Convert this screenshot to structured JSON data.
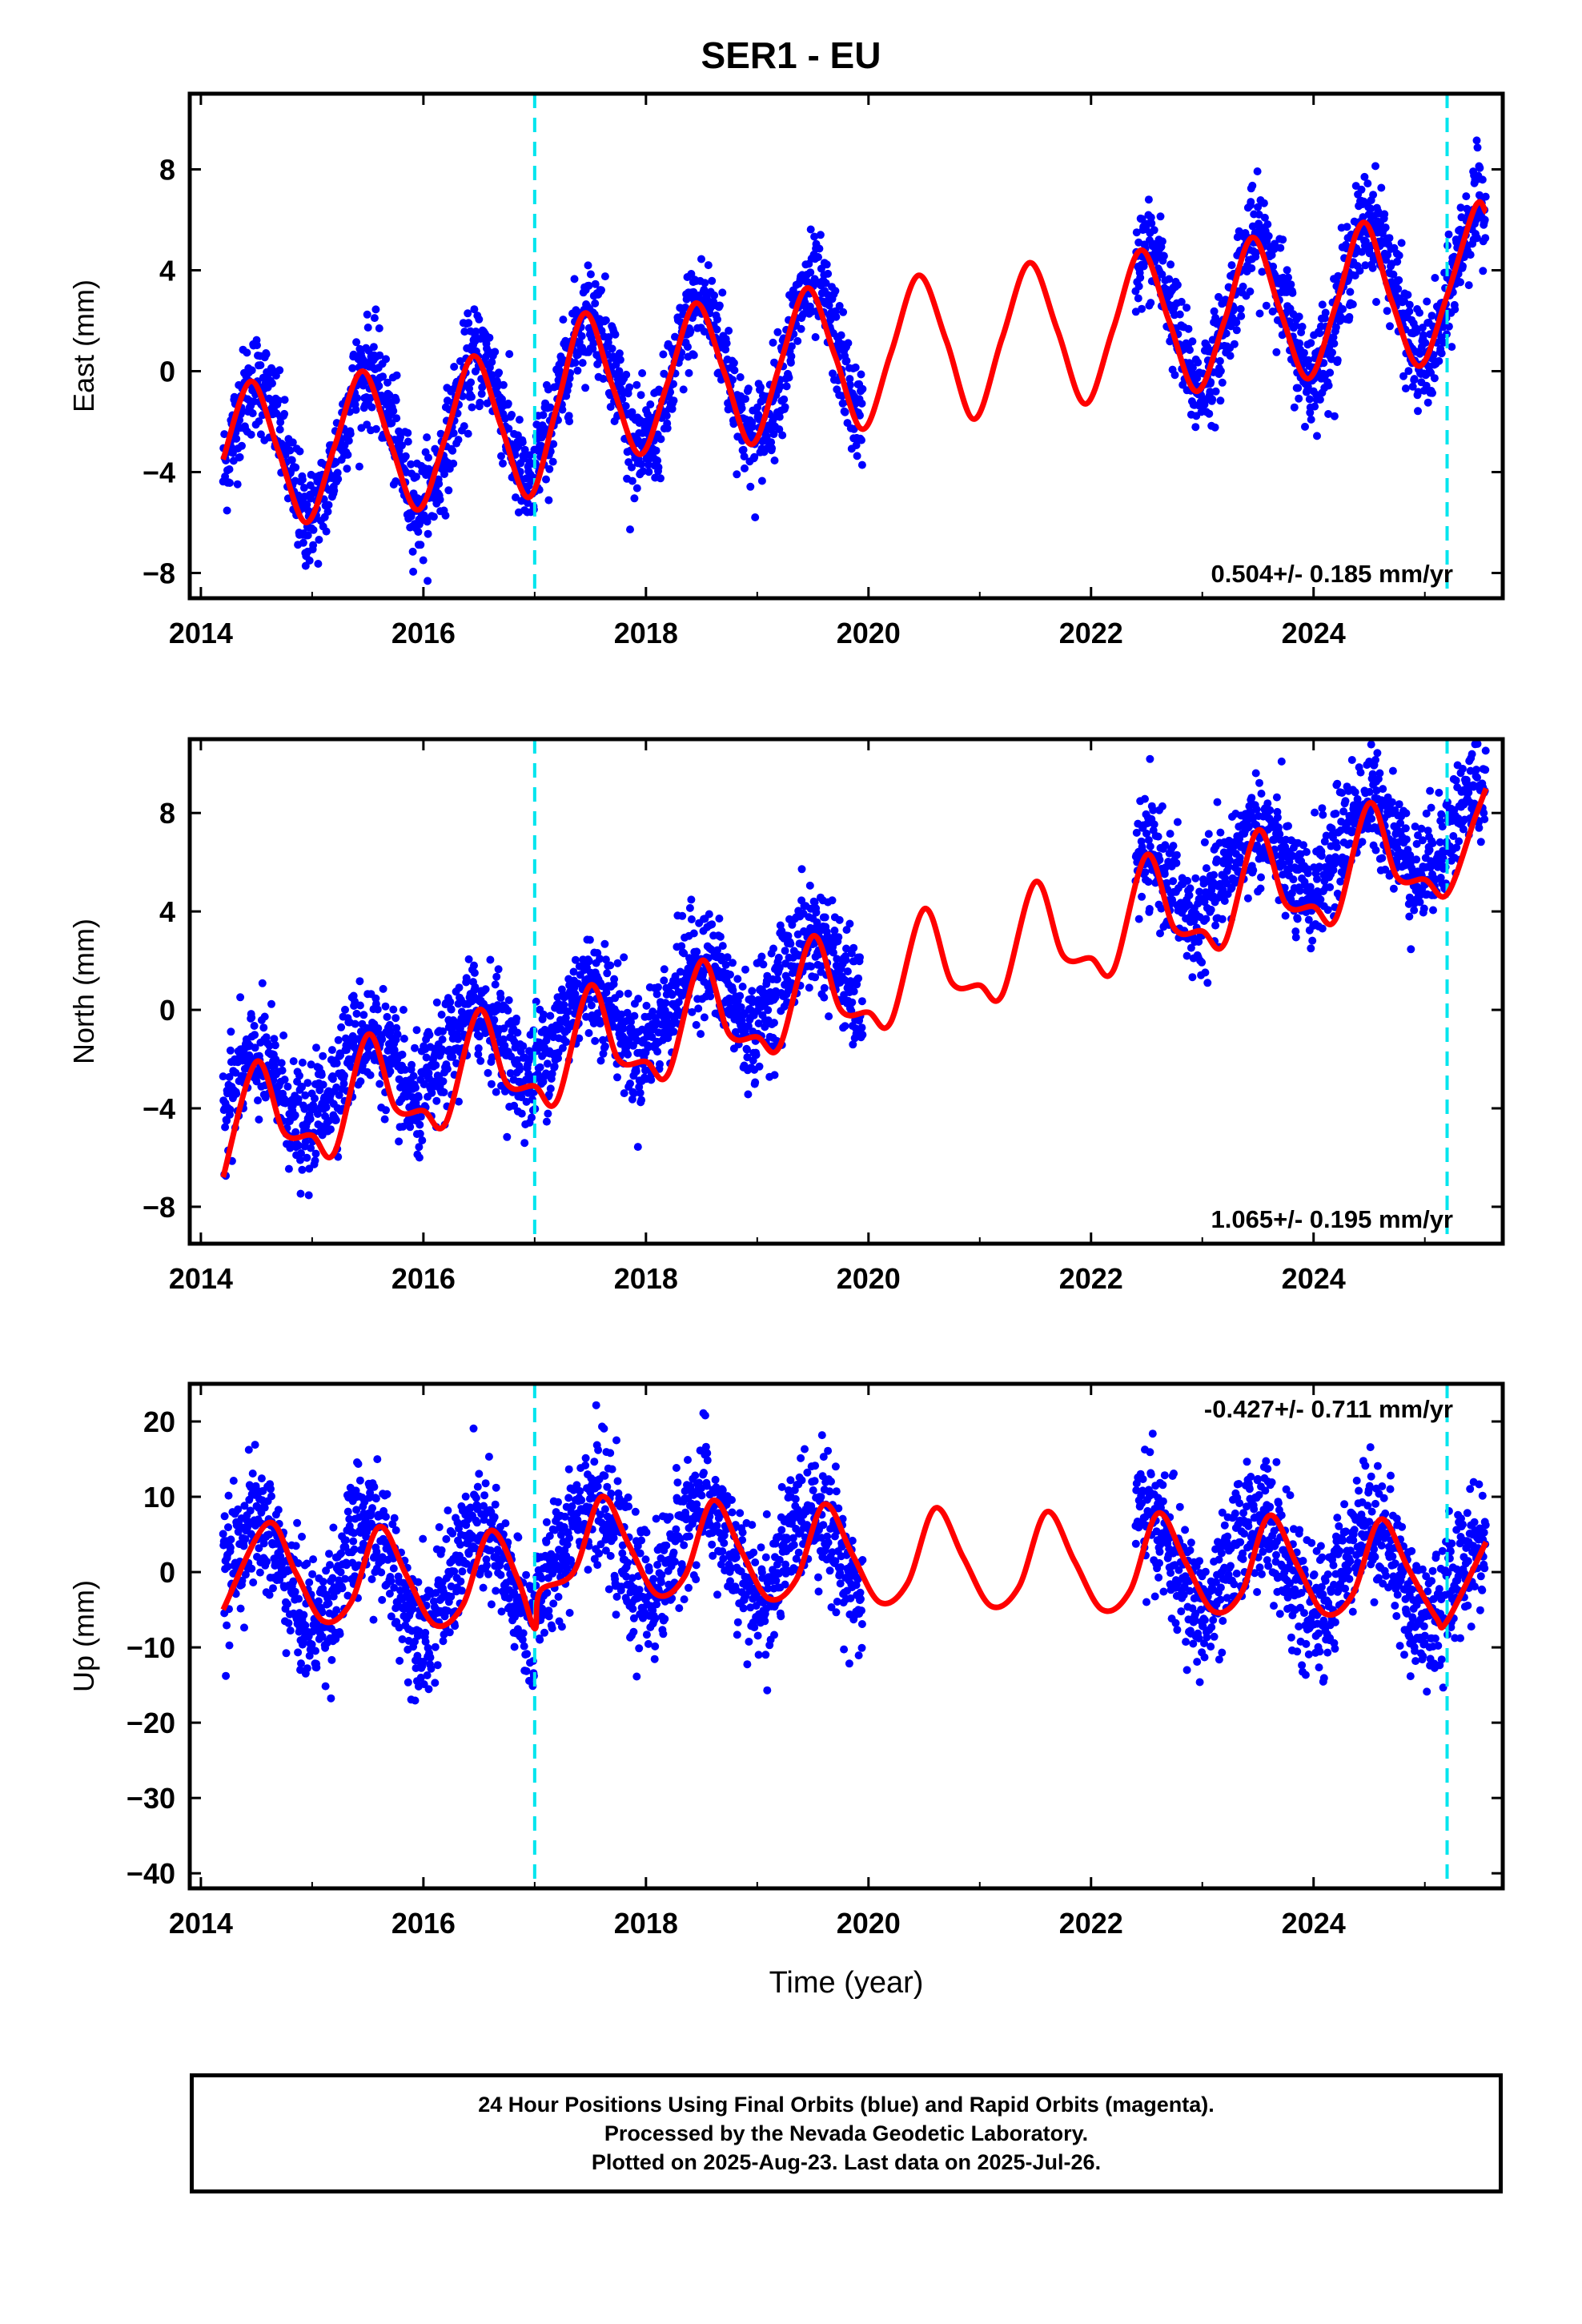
{
  "title": "SER1 - EU",
  "chart_data": [
    {
      "type": "scatter",
      "panel": "east",
      "ylabel": "East (mm)",
      "xlabel": "",
      "xlim": [
        2013.9,
        2025.7
      ],
      "ylim": [
        -9,
        11
      ],
      "xticks": [
        2014,
        2016,
        2018,
        2020,
        2022,
        2024
      ],
      "yticks": [
        -8,
        -4,
        0,
        4,
        8
      ],
      "grid": false,
      "rate_label": "0.504+/- 0.185 mm/yr",
      "rate_position": "bottom-right",
      "offset_lines": [
        2017.0,
        2025.2
      ],
      "point_color": "#0000ff",
      "fit_color": "#ff0000",
      "offset_color": "#00e5ee",
      "point_data": {
        "segments": [
          [
            2014.2,
            2019.95
          ],
          [
            2022.4,
            2025.55
          ]
        ],
        "trend": [
          -3.0,
          0.504
        ],
        "seasonal": [
          {
            "year": 2014,
            "peak": -0.4,
            "trough": -6.0
          },
          {
            "year": 2015,
            "peak": 0.0,
            "trough": -5.5
          },
          {
            "year": 2016,
            "peak": 0.6,
            "trough": -5.0
          },
          {
            "year": 2017,
            "peak": 2.3,
            "trough": -3.3
          },
          {
            "year": 2018,
            "peak": 2.7,
            "trough": -2.9
          },
          {
            "year": 2019,
            "peak": 3.3,
            "trough": -2.3
          },
          {
            "year": 2020,
            "peak": 3.8,
            "trough": -1.9
          },
          {
            "year": 2021,
            "peak": 4.3,
            "trough": -1.3
          },
          {
            "year": 2022,
            "peak": 4.8,
            "trough": -0.8
          },
          {
            "year": 2023,
            "peak": 5.3,
            "trough": -0.3
          },
          {
            "year": 2024,
            "peak": 5.9,
            "trough": 0.2
          },
          {
            "year": 2025,
            "peak": 6.5,
            "trough": 0.5
          }
        ],
        "scatter_sd": 1.0
      },
      "fit_curve": {
        "x": [
          2014.2,
          2014.45,
          2014.7,
          2014.95,
          2015.2,
          2015.45,
          2015.7,
          2015.95,
          2016.2,
          2016.45,
          2016.7,
          2016.95,
          2017.2,
          2017.45,
          2017.7,
          2017.95,
          2018.2,
          2018.45,
          2018.7,
          2018.95,
          2019.2,
          2019.45,
          2019.7,
          2019.95,
          2020.2,
          2020.45,
          2020.7,
          2020.95,
          2021.2,
          2021.45,
          2021.7,
          2021.95,
          2022.2,
          2022.45,
          2022.7,
          2022.95,
          2023.2,
          2023.45,
          2023.7,
          2023.95,
          2024.2,
          2024.45,
          2024.7,
          2024.95,
          2025.2,
          2025.45,
          2025.55
        ],
        "y": [
          -3.5,
          -0.4,
          -3.2,
          -6.0,
          -3.0,
          0.0,
          -2.8,
          -5.5,
          -2.6,
          0.6,
          -2.2,
          -5.0,
          -1.4,
          2.3,
          -0.6,
          -3.3,
          -0.4,
          2.7,
          0.0,
          -2.9,
          0.2,
          3.3,
          0.6,
          -2.3,
          0.7,
          3.8,
          1.2,
          -1.9,
          1.3,
          4.3,
          1.6,
          -1.3,
          1.7,
          4.8,
          2.0,
          -0.8,
          2.0,
          5.3,
          2.4,
          -0.3,
          2.6,
          5.9,
          2.8,
          0.2,
          3.0,
          6.5,
          6.3
        ]
      }
    },
    {
      "type": "scatter",
      "panel": "north",
      "ylabel": "North (mm)",
      "xlabel": "",
      "xlim": [
        2013.9,
        2025.7
      ],
      "ylim": [
        -9.5,
        11
      ],
      "xticks": [
        2014,
        2016,
        2018,
        2020,
        2022,
        2024
      ],
      "yticks": [
        -8,
        -4,
        0,
        4,
        8
      ],
      "grid": false,
      "rate_label": "1.065+/- 0.195 mm/yr",
      "rate_position": "bottom-right",
      "offset_lines": [
        2017.0,
        2025.2
      ],
      "point_color": "#0000ff",
      "fit_color": "#ff0000",
      "offset_color": "#00e5ee",
      "point_data": {
        "segments": [
          [
            2014.2,
            2019.95
          ],
          [
            2022.4,
            2025.55
          ]
        ],
        "trend": [
          -5.5,
          1.065
        ],
        "seasonal": [
          {
            "year": 2014,
            "peak": -2.1,
            "trough": -5.1
          },
          {
            "year": 2015,
            "peak": -1.0,
            "trough": -4.0
          },
          {
            "year": 2016,
            "peak": 0.0,
            "trough": -3.0
          },
          {
            "year": 2017,
            "peak": 1.0,
            "trough": -2.0
          },
          {
            "year": 2018,
            "peak": 2.0,
            "trough": -1.0
          },
          {
            "year": 2019,
            "peak": 3.0,
            "trough": 0.0
          },
          {
            "year": 2020,
            "peak": 4.1,
            "trough": 1.1
          },
          {
            "year": 2021,
            "peak": 5.2,
            "trough": 2.2
          },
          {
            "year": 2022,
            "peak": 6.3,
            "trough": 3.3
          },
          {
            "year": 2023,
            "peak": 7.3,
            "trough": 4.3
          },
          {
            "year": 2024,
            "peak": 8.4,
            "trough": 5.4
          },
          {
            "year": 2025,
            "peak": 9.0,
            "trough": 6.0
          }
        ],
        "scatter_sd": 1.1
      },
      "fit_curve": {
        "x": [
          2014.2,
          2014.5,
          2014.75,
          2015.0,
          2015.2,
          2015.5,
          2015.75,
          2016.0,
          2016.2,
          2016.5,
          2016.75,
          2017.0,
          2017.2,
          2017.5,
          2017.75,
          2018.0,
          2018.2,
          2018.5,
          2018.75,
          2019.0,
          2019.2,
          2019.5,
          2019.75,
          2020.0,
          2020.2,
          2020.5,
          2020.75,
          2021.0,
          2021.2,
          2021.5,
          2021.75,
          2022.0,
          2022.2,
          2022.5,
          2022.75,
          2023.0,
          2023.2,
          2023.5,
          2023.75,
          2024.0,
          2024.2,
          2024.5,
          2024.75,
          2025.0,
          2025.2,
          2025.45,
          2025.55
        ],
        "y": [
          -6.8,
          -2.1,
          -5.0,
          -5.1,
          -5.8,
          -1.0,
          -4.0,
          -4.1,
          -4.6,
          0.0,
          -3.0,
          -3.1,
          -3.7,
          1.0,
          -2.0,
          -2.1,
          -2.6,
          2.0,
          -1.0,
          -1.1,
          -1.5,
          3.0,
          0.0,
          -0.1,
          -0.5,
          4.1,
          1.1,
          1.0,
          0.6,
          5.2,
          2.2,
          2.1,
          1.6,
          6.3,
          3.3,
          3.2,
          2.7,
          7.3,
          4.3,
          4.2,
          3.7,
          8.4,
          5.4,
          5.3,
          4.7,
          7.8,
          9.0
        ]
      }
    },
    {
      "type": "scatter",
      "panel": "up",
      "ylabel": "Up (mm)",
      "xlabel": "Time (year)",
      "xlim": [
        2013.9,
        2025.7
      ],
      "ylim": [
        -42,
        25
      ],
      "xticks": [
        2014,
        2016,
        2018,
        2020,
        2022,
        2024
      ],
      "yticks": [
        -40,
        -30,
        -20,
        -10,
        0,
        10,
        20
      ],
      "grid": false,
      "rate_label": "-0.427+/- 0.711 mm/yr",
      "rate_position": "top-right",
      "offset_lines": [
        2017.0,
        2025.2
      ],
      "point_color": "#0000ff",
      "fit_color": "#ff0000",
      "offset_color": "#00e5ee",
      "point_data": {
        "segments": [
          [
            2014.2,
            2019.95
          ],
          [
            2022.4,
            2025.55
          ]
        ],
        "trend": [
          0.0,
          -0.427
        ],
        "seasonal": [
          {
            "year": 2014,
            "peak": 6.5,
            "trough": -6.5
          },
          {
            "year": 2015,
            "peak": 6.0,
            "trough": -7.0
          },
          {
            "year": 2016,
            "peak": 5.5,
            "trough": -7.5
          },
          {
            "year": 2017,
            "peak": 10.0,
            "trough": -3.0
          },
          {
            "year": 2018,
            "peak": 9.5,
            "trough": -3.5
          },
          {
            "year": 2019,
            "peak": 9.0,
            "trough": -4.0
          },
          {
            "year": 2020,
            "peak": 8.5,
            "trough": -4.5
          },
          {
            "year": 2021,
            "peak": 8.0,
            "trough": -5.0
          },
          {
            "year": 2022,
            "peak": 7.8,
            "trough": -5.2
          },
          {
            "year": 2023,
            "peak": 7.5,
            "trough": -5.5
          },
          {
            "year": 2024,
            "peak": 7.0,
            "trough": -6.0
          },
          {
            "year": 2025,
            "peak": 4.0,
            "trough": -6.5
          }
        ],
        "scatter_sd": 4.2
      },
      "fit_curve": {
        "x": [
          2014.2,
          2014.6,
          2014.85,
          2015.1,
          2015.35,
          2015.6,
          2015.85,
          2016.1,
          2016.35,
          2016.6,
          2016.85,
          2017.0,
          2017.05,
          2017.35,
          2017.6,
          2017.85,
          2018.1,
          2018.35,
          2018.6,
          2018.85,
          2019.1,
          2019.35,
          2019.6,
          2019.85,
          2020.1,
          2020.35,
          2020.6,
          2020.85,
          2021.1,
          2021.35,
          2021.6,
          2021.85,
          2022.1,
          2022.35,
          2022.6,
          2022.85,
          2023.1,
          2023.35,
          2023.6,
          2023.85,
          2024.1,
          2024.35,
          2024.6,
          2024.85,
          2025.1,
          2025.2,
          2025.55
        ],
        "y": [
          -5.0,
          6.5,
          0.0,
          -6.5,
          -4.0,
          6.0,
          -0.5,
          -7.0,
          -4.5,
          5.5,
          -1.0,
          -7.5,
          -2.5,
          0.0,
          10.0,
          3.5,
          -3.0,
          -0.5,
          9.5,
          3.0,
          -3.5,
          -1.0,
          9.0,
          2.5,
          -4.0,
          -1.5,
          8.5,
          2.0,
          -4.5,
          -2.0,
          8.0,
          1.5,
          -5.0,
          -2.5,
          7.8,
          1.3,
          -5.2,
          -2.8,
          7.5,
          1.0,
          -5.5,
          -3.0,
          7.0,
          0.5,
          -6.0,
          -6.5,
          4.0
        ]
      }
    }
  ],
  "footer": {
    "line1": "24 Hour Positions Using Final Orbits (blue) and Rapid Orbits (magenta).",
    "line2": "Processed by the Nevada Geodetic Laboratory.",
    "line3": "Plotted on 2025-Aug-23. Last data on 2025-Jul-26."
  }
}
